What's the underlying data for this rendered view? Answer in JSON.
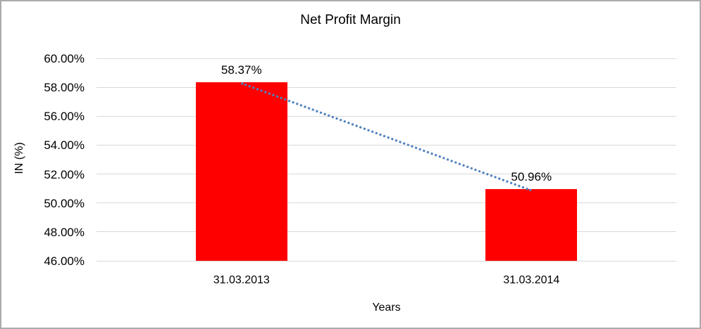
{
  "colors": {
    "background": "#ffffff",
    "frame_border": "#ababab",
    "grid": "#d9d9d9",
    "text": "#000000"
  },
  "chart_data": {
    "type": "bar",
    "title": "Net Profit Margin",
    "xlabel": "Years",
    "ylabel": "IN (%)",
    "categories": [
      "31.03.2013",
      "31.03.2014"
    ],
    "values": [
      58.37,
      50.96
    ],
    "series": [
      {
        "name": "Net Profit Margin",
        "values": [
          58.37,
          50.96
        ]
      }
    ],
    "data_labels": [
      "58.37%",
      "50.96%"
    ],
    "ylim": [
      46,
      60
    ],
    "ytick_step": 2,
    "ytick_labels": [
      "60.00%",
      "58.00%",
      "56.00%",
      "54.00%",
      "52.00%",
      "50.00%",
      "48.00%",
      "46.00%"
    ],
    "grid": true,
    "legend_position": "none",
    "bar_color": "#ff0000",
    "trendline": {
      "style": "dotted",
      "color": "#4f81bd",
      "from": 58.37,
      "to": 50.96
    }
  }
}
